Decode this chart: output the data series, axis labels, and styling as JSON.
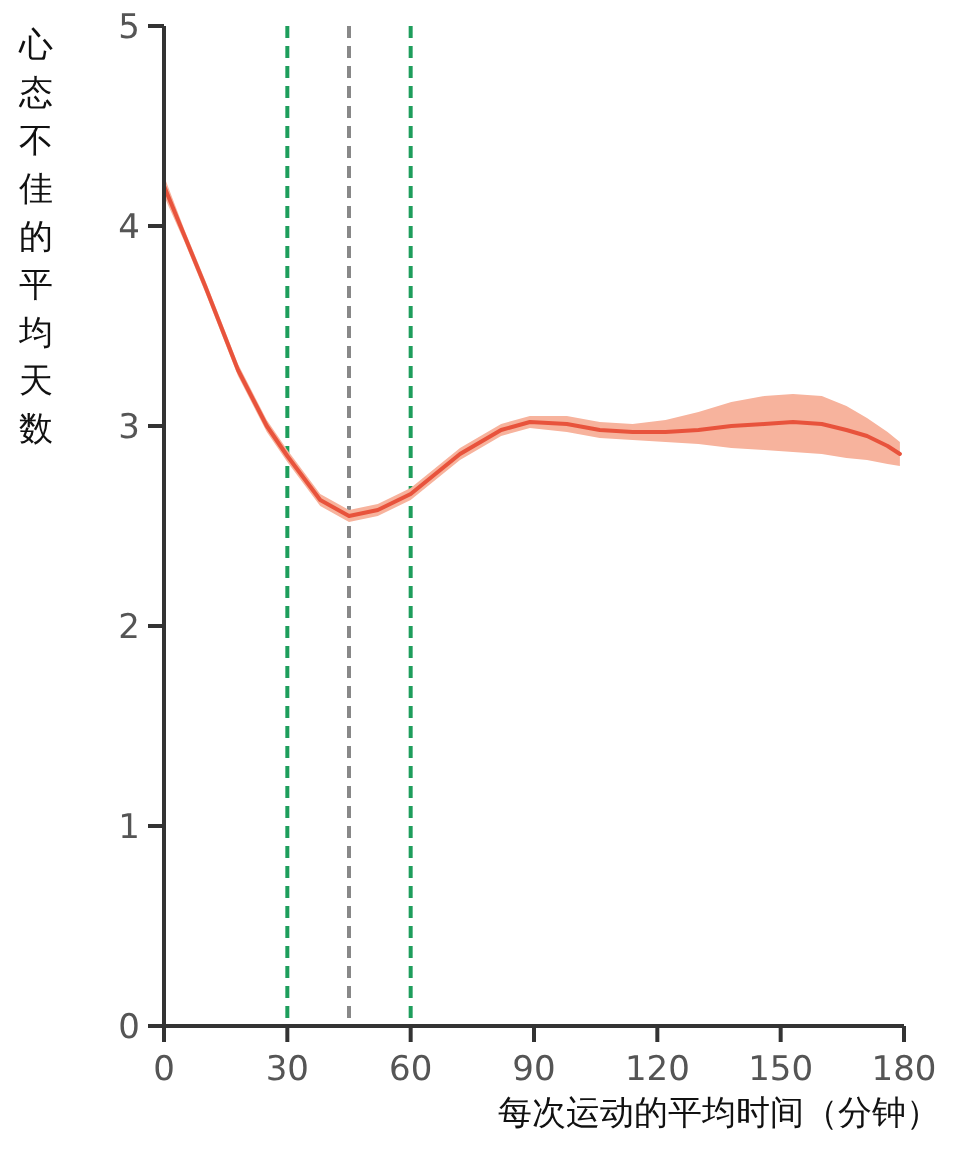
{
  "chart_data": {
    "type": "line",
    "xlabel": "每次运动的平均时间（分钟）",
    "ylabel": "心态不佳的平均天数",
    "xlim": [
      0,
      180
    ],
    "ylim": [
      0,
      5
    ],
    "xticks": [
      0,
      30,
      60,
      90,
      120,
      150,
      180
    ],
    "yticks": [
      0,
      1,
      2,
      3,
      4,
      5
    ],
    "grid": false,
    "marker": "none",
    "line_style": "solid",
    "series": [
      {
        "color": "#e8533c",
        "x": [
          0,
          5,
          10,
          18,
          25,
          30,
          38,
          45,
          52,
          60,
          66,
          72,
          82,
          89,
          98,
          106,
          114,
          122,
          130,
          138,
          146,
          153,
          160,
          166,
          171,
          176,
          179
        ],
        "values": [
          4.2,
          3.95,
          3.7,
          3.28,
          3.0,
          2.85,
          2.63,
          2.55,
          2.58,
          2.66,
          2.76,
          2.86,
          2.98,
          3.02,
          3.01,
          2.98,
          2.97,
          2.97,
          2.98,
          3.0,
          3.01,
          3.02,
          3.01,
          2.98,
          2.95,
          2.9,
          2.86
        ],
        "lower": [
          4.15,
          3.92,
          3.67,
          3.25,
          2.97,
          2.82,
          2.6,
          2.52,
          2.55,
          2.63,
          2.73,
          2.83,
          2.95,
          2.99,
          2.97,
          2.94,
          2.93,
          2.92,
          2.91,
          2.89,
          2.88,
          2.87,
          2.86,
          2.84,
          2.83,
          2.81,
          2.8
        ],
        "upper": [
          4.25,
          3.98,
          3.73,
          3.31,
          3.03,
          2.88,
          2.66,
          2.58,
          2.61,
          2.69,
          2.79,
          2.89,
          3.01,
          3.05,
          3.05,
          3.02,
          3.01,
          3.03,
          3.07,
          3.12,
          3.15,
          3.16,
          3.15,
          3.1,
          3.04,
          2.97,
          2.92
        ]
      }
    ],
    "ref_lines": [
      {
        "axis": "x",
        "value": 30,
        "color": "#1e9e5c",
        "line_style": "dashed"
      },
      {
        "axis": "x",
        "value": 45,
        "color": "#888888",
        "line_style": "dashed"
      },
      {
        "axis": "x",
        "value": 60,
        "color": "#1e9e5c",
        "line_style": "dashed"
      }
    ]
  }
}
